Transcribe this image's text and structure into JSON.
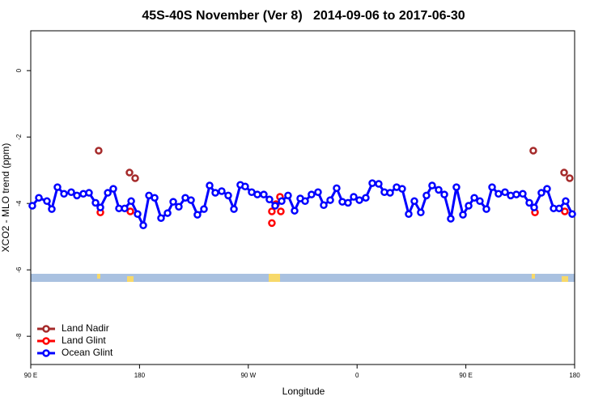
{
  "chart_data": {
    "type": "line",
    "title": "45S-40S November (Ver 8)   2014-09-06 to 2017-06-30",
    "xlabel": "Longitude",
    "ylabel": "XCO2 - MLO trend (ppm)",
    "xlim": [
      90,
      540
    ],
    "ylim": [
      -8.85,
      1.2
    ],
    "xticks": [
      {
        "value": 90,
        "label": "90 E"
      },
      {
        "value": 180,
        "label": "180"
      },
      {
        "value": 270,
        "label": "90 W"
      },
      {
        "value": 360,
        "label": "0"
      },
      {
        "value": 450,
        "label": "90 E"
      },
      {
        "value": 540,
        "label": "180"
      }
    ],
    "yticks": [
      0,
      -2,
      -4,
      -6,
      -8
    ],
    "legend": "bottomleft",
    "series": [
      {
        "name": "Land Nadir",
        "color": "#a52a2a",
        "line": false,
        "x": [
          146.2,
          171.7,
          176.4,
          505.8,
          531.3,
          535.9
        ],
        "values": [
          -2.41,
          -3.07,
          -3.24,
          -2.41,
          -3.07,
          -3.24
        ]
      },
      {
        "name": "Land Glint",
        "color": "#ff0000",
        "line": false,
        "x": [
          147.6,
          172.4,
          289.5,
          289.5,
          292.9,
          296.2,
          296.9,
          507.2,
          531.9
        ],
        "values": [
          -4.27,
          -4.24,
          -4.24,
          -4.59,
          -4.02,
          -3.8,
          -4.24,
          -4.27,
          -4.24
        ]
      },
      {
        "name": "Ocean Glint",
        "color": "#0000ff",
        "line": true,
        "x": [
          91.3,
          96.7,
          103.4,
          107.4,
          112.1,
          117.5,
          123.5,
          128.2,
          133.5,
          138.2,
          143.6,
          147.6,
          153.7,
          158.3,
          163.0,
          167.7,
          173.1,
          178.4,
          183.1,
          187.8,
          192.5,
          197.8,
          203.2,
          207.9,
          212.5,
          217.9,
          222.6,
          227.9,
          233.3,
          238.0,
          242.7,
          248.0,
          253.4,
          258.1,
          263.4,
          267.4,
          272.8,
          277.5,
          282.8,
          287.5,
          292.2,
          297.6,
          302.9,
          308.3,
          313.0,
          317.0,
          322.3,
          327.7,
          332.4,
          337.8,
          343.1,
          347.8,
          352.5,
          357.2,
          361.9,
          367.2,
          372.6,
          377.9,
          382.6,
          387.3,
          392.7,
          397.3,
          402.7,
          407.4,
          412.7,
          417.4,
          422.1,
          427.5,
          432.2,
          437.5,
          442.2,
          447.6,
          452.3,
          457.0,
          461.6,
          467.0,
          471.7,
          477.0,
          482.4,
          487.1,
          491.8,
          497.1,
          502.5,
          506.5,
          512.5,
          517.2,
          522.6,
          527.2,
          532.6,
          538.0
        ],
        "values": [
          -4.07,
          -3.83,
          -3.93,
          -4.17,
          -3.51,
          -3.71,
          -3.66,
          -3.76,
          -3.71,
          -3.68,
          -3.98,
          -4.12,
          -3.68,
          -3.56,
          -4.15,
          -4.15,
          -3.93,
          -4.32,
          -4.66,
          -3.76,
          -3.83,
          -4.44,
          -4.29,
          -3.95,
          -4.1,
          -3.83,
          -3.9,
          -4.34,
          -4.17,
          -3.46,
          -3.68,
          -3.63,
          -3.76,
          -4.17,
          -3.44,
          -3.49,
          -3.66,
          -3.73,
          -3.73,
          -3.88,
          -4.07,
          -3.93,
          -3.76,
          -4.22,
          -3.85,
          -3.93,
          -3.73,
          -3.66,
          -4.05,
          -3.9,
          -3.54,
          -3.95,
          -3.98,
          -3.8,
          -3.9,
          -3.83,
          -3.39,
          -3.41,
          -3.66,
          -3.68,
          -3.51,
          -3.56,
          -4.32,
          -3.93,
          -4.27,
          -3.76,
          -3.46,
          -3.59,
          -3.73,
          -4.46,
          -3.51,
          -4.34,
          -4.07,
          -3.83,
          -3.93,
          -4.17,
          -3.51,
          -3.71,
          -3.66,
          -3.76,
          -3.73,
          -3.71,
          -3.98,
          -4.12,
          -3.68,
          -3.56,
          -4.15,
          -4.15,
          -3.93,
          -4.32
        ]
      }
    ]
  }
}
